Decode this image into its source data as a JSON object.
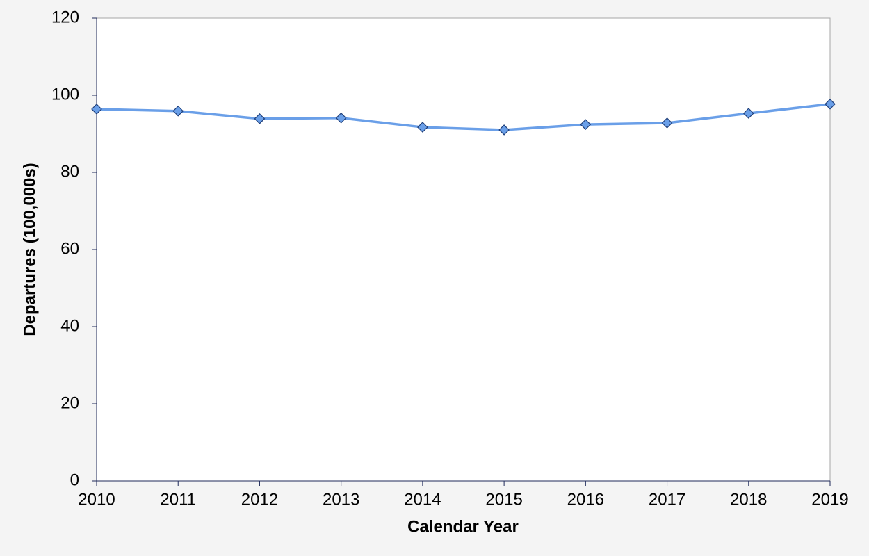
{
  "chart_data": {
    "type": "line",
    "x_label": "Calendar Year",
    "y_label": "Departures (100,000s)",
    "x": [
      2010,
      2011,
      2012,
      2013,
      2014,
      2015,
      2016,
      2017,
      2018,
      2019
    ],
    "series": [
      {
        "name": "Departures",
        "color": "#6a9fe8",
        "values": [
          96.4,
          95.9,
          93.9,
          94.1,
          91.7,
          91.0,
          92.4,
          92.8,
          95.3,
          97.7
        ]
      }
    ],
    "xlim": [
      2010,
      2019
    ],
    "xticks": [
      2010,
      2011,
      2012,
      2013,
      2014,
      2015,
      2016,
      2017,
      2018,
      2019
    ],
    "ylim": [
      0,
      120
    ],
    "yticks": [
      0,
      20,
      40,
      60,
      80,
      100,
      120
    ]
  }
}
